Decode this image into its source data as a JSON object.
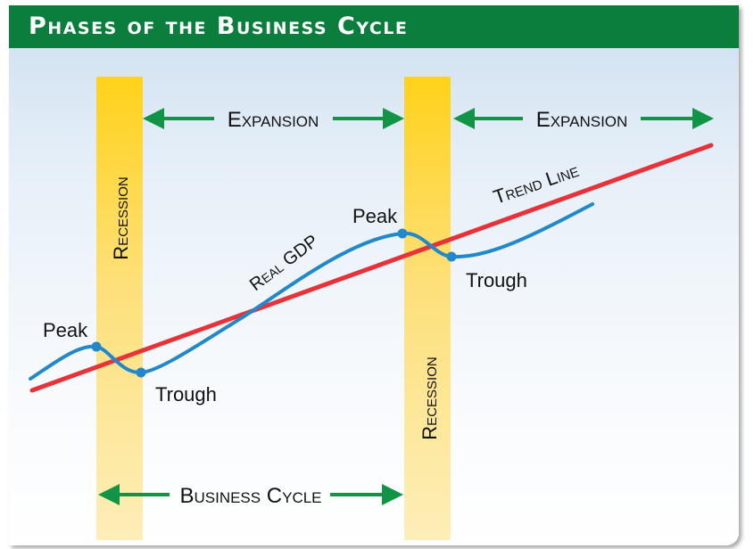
{
  "title": "Phases of the Business Cycle",
  "labels": {
    "recession_left": "Recession",
    "recession_right": "Recession",
    "expansion_1": "Expansion",
    "expansion_2": "Expansion",
    "business_cycle": "Business Cycle",
    "trend_line": "Trend Line",
    "real_gdp": "Real GDP",
    "peak_1": "Peak",
    "trough_1": "Trough",
    "peak_2": "Peak",
    "trough_2": "Trough"
  },
  "colors": {
    "title_bar": "#0b7d3c",
    "arrow": "#129447",
    "trend_line": "#e8323a",
    "real_gdp": "#2288cc",
    "recession_band": "#fcd84a"
  }
}
